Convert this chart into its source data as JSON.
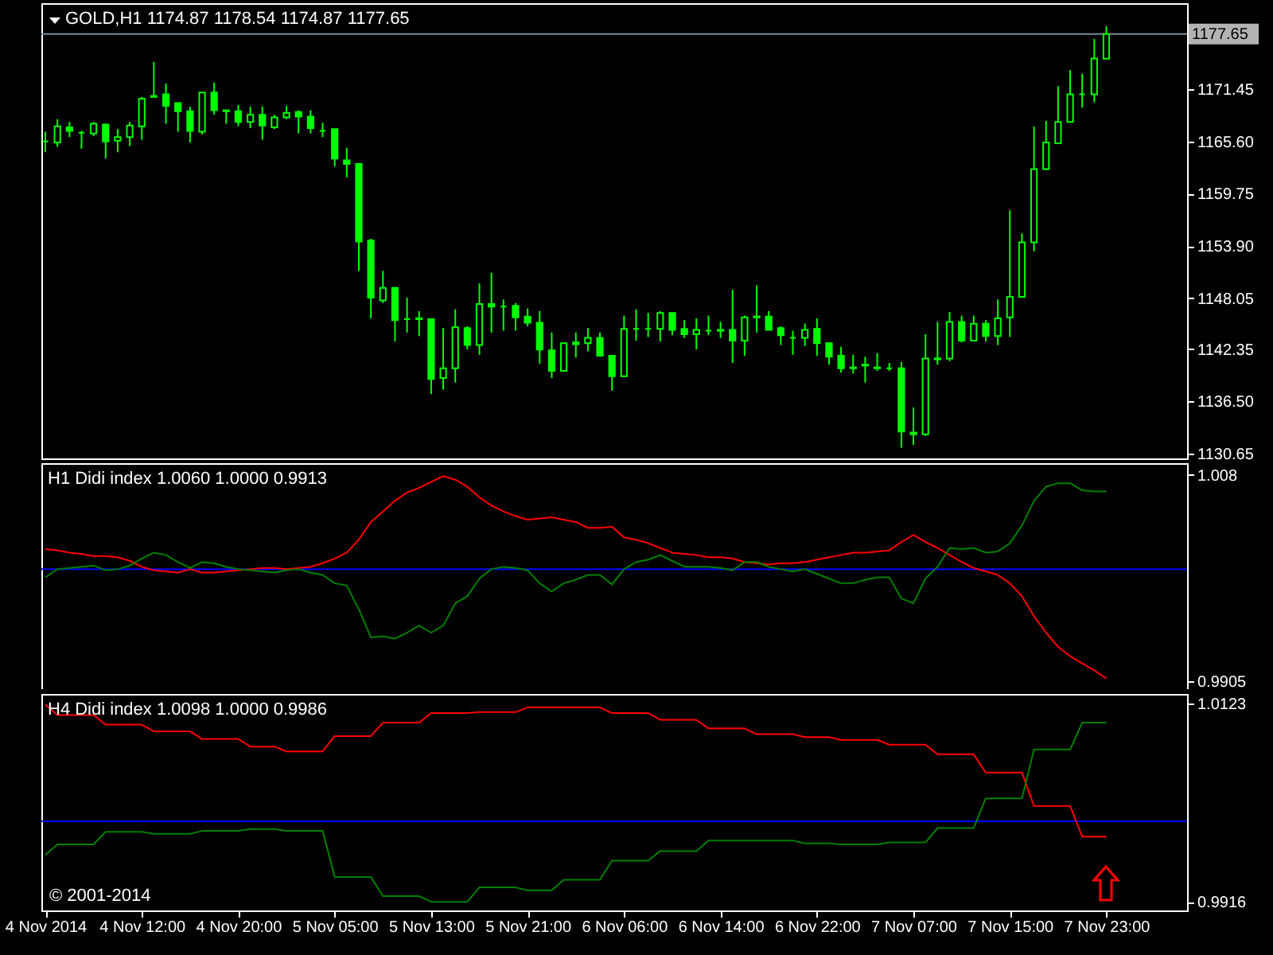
{
  "chart_data": [
    {
      "type": "candlestick",
      "title": "GOLD,H1 1174.87 1178.54 1174.87 1177.65",
      "color": "#00ff00",
      "categories": [
        null,
        null,
        null,
        null,
        null,
        null,
        null,
        null,
        null,
        null,
        null,
        null,
        null,
        null,
        null,
        null,
        null,
        null,
        null,
        null,
        null,
        null,
        null,
        null,
        null,
        null,
        null,
        null,
        null,
        null,
        null,
        null,
        null,
        null,
        null,
        null,
        null,
        null,
        null,
        null,
        null,
        null,
        null,
        null,
        null,
        null,
        null,
        null,
        null,
        null,
        null,
        null,
        null,
        null,
        null,
        null,
        null,
        null,
        null,
        null,
        null,
        null,
        null,
        null,
        null,
        null,
        null,
        null,
        null,
        null,
        null,
        null,
        null,
        null,
        null,
        null,
        null,
        null,
        null,
        null,
        null,
        null,
        null,
        null,
        null,
        null,
        null,
        null,
        null
      ],
      "ohlc": [
        [
          1165.6,
          1166.7,
          1164.4,
          1165.6
        ],
        [
          1165.5,
          1168.1,
          1165.0,
          1167.3
        ],
        [
          1167.2,
          1167.8,
          1166.1,
          1166.8
        ],
        [
          1166.6,
          1166.8,
          1164.8,
          1166.6
        ],
        [
          1166.5,
          1167.8,
          1166.2,
          1167.6
        ],
        [
          1167.5,
          1167.6,
          1163.7,
          1165.6
        ],
        [
          1165.7,
          1167.0,
          1164.4,
          1166.1
        ],
        [
          1166.1,
          1167.8,
          1165.1,
          1167.4
        ],
        [
          1167.3,
          1170.6,
          1165.8,
          1170.4
        ],
        [
          1170.6,
          1174.5,
          1170.6,
          1170.7
        ],
        [
          1170.9,
          1172.1,
          1167.6,
          1169.6
        ],
        [
          1169.9,
          1169.9,
          1166.7,
          1169.0
        ],
        [
          1169.0,
          1169.5,
          1165.5,
          1166.8
        ],
        [
          1166.7,
          1171.1,
          1166.4,
          1171.1
        ],
        [
          1171.1,
          1172.2,
          1168.6,
          1169.1
        ],
        [
          1169.1,
          1169.1,
          1167.6,
          1169.0
        ],
        [
          1169.0,
          1169.7,
          1167.3,
          1167.8
        ],
        [
          1167.8,
          1169.5,
          1167.1,
          1168.6
        ],
        [
          1168.6,
          1169.5,
          1165.8,
          1167.4
        ],
        [
          1167.2,
          1168.6,
          1167.0,
          1168.3
        ],
        [
          1168.3,
          1169.6,
          1168.1,
          1168.8
        ],
        [
          1168.9,
          1169.1,
          1166.5,
          1168.4
        ],
        [
          1168.4,
          1169.1,
          1166.5,
          1167.1
        ],
        [
          1166.8,
          1167.7,
          1166.1,
          1166.8
        ],
        [
          1167.0,
          1167.0,
          1162.8,
          1163.7
        ],
        [
          1163.5,
          1164.9,
          1161.6,
          1163.1
        ],
        [
          1163.1,
          1163.1,
          1151.1,
          1154.4
        ],
        [
          1154.5,
          1154.7,
          1145.8,
          1148.1
        ],
        [
          1147.8,
          1151.1,
          1147.5,
          1149.2
        ],
        [
          1149.2,
          1149.3,
          1143.2,
          1145.6
        ],
        [
          1145.7,
          1148.1,
          1144.2,
          1145.7
        ],
        [
          1145.8,
          1146.6,
          1143.8,
          1145.7
        ],
        [
          1145.7,
          1145.8,
          1137.3,
          1139.0
        ],
        [
          1139.1,
          1144.7,
          1137.8,
          1140.2
        ],
        [
          1140.2,
          1146.8,
          1138.6,
          1144.8
        ],
        [
          1144.7,
          1144.9,
          1142.3,
          1142.8
        ],
        [
          1142.8,
          1149.7,
          1141.7,
          1147.4
        ],
        [
          1147.4,
          1150.9,
          1144.2,
          1147.1
        ],
        [
          1147.1,
          1147.9,
          1144.4,
          1147.1
        ],
        [
          1147.2,
          1147.5,
          1144.4,
          1145.9
        ],
        [
          1146.0,
          1146.9,
          1144.9,
          1145.3
        ],
        [
          1145.3,
          1146.6,
          1140.7,
          1142.3
        ],
        [
          1142.2,
          1144.2,
          1139.1,
          1139.9
        ],
        [
          1139.9,
          1143.1,
          1139.8,
          1143.0
        ],
        [
          1143.1,
          1144.2,
          1141.4,
          1142.9
        ],
        [
          1143.0,
          1144.7,
          1142.1,
          1143.6
        ],
        [
          1143.6,
          1144.2,
          1141.5,
          1141.6
        ],
        [
          1141.6,
          1141.7,
          1137.7,
          1139.3
        ],
        [
          1139.3,
          1146.1,
          1139.3,
          1144.6
        ],
        [
          1144.6,
          1146.8,
          1143.3,
          1144.6
        ],
        [
          1144.6,
          1146.4,
          1143.7,
          1144.6
        ],
        [
          1144.6,
          1146.6,
          1143.2,
          1146.4
        ],
        [
          1146.4,
          1146.4,
          1143.9,
          1144.5
        ],
        [
          1144.6,
          1145.6,
          1143.6,
          1144.0
        ],
        [
          1144.0,
          1145.8,
          1142.3,
          1144.5
        ],
        [
          1144.4,
          1146.1,
          1143.9,
          1144.4
        ],
        [
          1144.4,
          1145.4,
          1143.6,
          1144.5
        ],
        [
          1144.5,
          1149.0,
          1140.8,
          1143.3
        ],
        [
          1143.3,
          1146.1,
          1141.6,
          1145.9
        ],
        [
          1145.9,
          1149.5,
          1144.2,
          1146.0
        ],
        [
          1146.0,
          1146.6,
          1144.5,
          1144.5
        ],
        [
          1144.7,
          1144.9,
          1142.8,
          1143.9
        ],
        [
          1143.6,
          1144.4,
          1141.7,
          1143.6
        ],
        [
          1143.6,
          1145.2,
          1142.7,
          1144.5
        ],
        [
          1144.6,
          1145.8,
          1141.6,
          1143.0
        ],
        [
          1143.0,
          1143.1,
          1140.6,
          1141.5
        ],
        [
          1141.6,
          1142.6,
          1139.7,
          1140.2
        ],
        [
          1140.2,
          1141.7,
          1139.6,
          1140.3
        ],
        [
          1140.6,
          1141.5,
          1138.6,
          1140.5
        ],
        [
          1140.3,
          1141.9,
          1139.9,
          1140.2
        ],
        [
          1140.2,
          1140.8,
          1139.9,
          1140.2
        ],
        [
          1140.2,
          1140.9,
          1131.3,
          1133.1
        ],
        [
          1133.0,
          1135.8,
          1131.6,
          1132.8
        ],
        [
          1132.8,
          1144.0,
          1132.6,
          1141.3
        ],
        [
          1141.2,
          1145.4,
          1140.6,
          1141.3
        ],
        [
          1141.3,
          1146.5,
          1141.0,
          1145.4
        ],
        [
          1145.4,
          1146.1,
          1143.1,
          1143.3
        ],
        [
          1143.3,
          1146.1,
          1143.2,
          1145.2
        ],
        [
          1145.2,
          1145.6,
          1143.2,
          1143.8
        ],
        [
          1143.8,
          1147.9,
          1142.8,
          1145.8
        ],
        [
          1145.9,
          1157.9,
          1143.7,
          1148.2
        ],
        [
          1148.2,
          1155.3,
          1148.1,
          1154.3
        ],
        [
          1154.3,
          1167.3,
          1153.3,
          1162.5
        ],
        [
          1162.5,
          1167.9,
          1162.4,
          1165.5
        ],
        [
          1165.4,
          1171.8,
          1165.4,
          1167.8
        ],
        [
          1167.8,
          1173.6,
          1167.8,
          1170.9
        ],
        [
          1170.9,
          1173.2,
          1169.4,
          1170.9
        ],
        [
          1170.9,
          1177.1,
          1170.0,
          1174.9
        ],
        [
          1174.87,
          1178.54,
          1174.87,
          1177.65
        ]
      ],
      "ylim": [
        1130.1,
        1181.1
      ],
      "yticks": [
        1130.65,
        {
          "value": 1136.5,
          "label": "1136.50"
        },
        1142.35,
        1148.05,
        {
          "value": 1153.9,
          "label": "1153.90"
        },
        1159.75,
        {
          "value": 1165.6,
          "label": "1165.60"
        },
        1171.45
      ],
      "ref_lines": [
        {
          "axis": "y",
          "value": 1177.65,
          "label": "1177.65",
          "color": "#778899"
        }
      ],
      "tick_labels": "y"
    },
    {
      "type": "line",
      "title": "H1 Didi index 1.0060 1.0000 0.9913",
      "categories": [
        null,
        null,
        null,
        null,
        null,
        null,
        null,
        null,
        null,
        null,
        null,
        null,
        null,
        null,
        null,
        null,
        null,
        null,
        null,
        null,
        null,
        null,
        null,
        null,
        null,
        null,
        null,
        null,
        null,
        null,
        null,
        null,
        null,
        null,
        null,
        null,
        null,
        null,
        null,
        null,
        null,
        null,
        null,
        null,
        null,
        null,
        null,
        null,
        null,
        null,
        null,
        null,
        null,
        null,
        null,
        null,
        null,
        null,
        null,
        null,
        null,
        null,
        null,
        null,
        null,
        null,
        null,
        null,
        null,
        null,
        null,
        null,
        null,
        null,
        null,
        null,
        null,
        null,
        null,
        null,
        null,
        null,
        null,
        null,
        null,
        null,
        null,
        null,
        null
      ],
      "series": [
        {
          "color": "#ff0000",
          "values": [
            1.0017,
            1.0016,
            1.0014,
            1.0013,
            1.0011,
            1.0011,
            1.001,
            1.0007,
            1.0002,
            0.9999,
            0.9998,
            0.9997,
            1.0,
            0.9997,
            0.9997,
            0.9998,
            0.9999,
            1.0,
            1.0001,
            1.0001,
            1.0,
            1.0001,
            1.0002,
            1.0005,
            1.0009,
            1.0014,
            1.0025,
            1.004,
            1.0049,
            1.0058,
            1.0065,
            1.0069,
            1.0074,
            1.0079,
            1.0076,
            1.007,
            1.0061,
            1.0054,
            1.0049,
            1.0045,
            1.0042,
            1.0043,
            1.0044,
            1.0042,
            1.004,
            1.0035,
            1.0035,
            1.0036,
            1.0027,
            1.0025,
            1.0022,
            1.0018,
            1.0014,
            1.0013,
            1.0012,
            1.001,
            1.001,
            1.0009,
            1.0006,
            1.0005,
            1.0004,
            1.0005,
            1.0005,
            1.0006,
            1.0008,
            1.001,
            1.0012,
            1.0014,
            1.0014,
            1.0015,
            1.0016,
            1.0023,
            1.0029,
            1.0023,
            1.0018,
            1.0012,
            1.0006,
            1.0001,
            0.9998,
            0.9995,
            0.9988,
            0.9977,
            0.996,
            0.9946,
            0.9934,
            0.9926,
            0.992,
            0.9914,
            0.9907
          ]
        },
        {
          "color": "#008000",
          "values": [
            0.9993,
            1.0,
            1.0001,
            1.0002,
            1.0003,
            0.9999,
            1.0,
            1.0003,
            1.0009,
            1.0014,
            1.0012,
            1.0006,
            1.0001,
            1.0006,
            1.0005,
            1.0002,
            1.0,
            0.9999,
            0.9998,
            0.9997,
            0.9999,
            1.0,
            0.9997,
            0.9995,
            0.9988,
            0.9986,
            0.9966,
            0.9942,
            0.9943,
            0.9941,
            0.9946,
            0.9952,
            0.9946,
            0.9952,
            0.9971,
            0.9977,
            0.9992,
            1.0,
            1.0002,
            1.0001,
            0.9999,
            0.9988,
            0.9981,
            0.9988,
            0.9991,
            0.9995,
            0.9995,
            0.9987,
            1.0,
            1.0006,
            1.0008,
            1.0012,
            1.0007,
            1.0002,
            1.0002,
            1.0002,
            1.0001,
            0.9999,
            1.0006,
            1.0006,
            1.0002,
            1.0,
            0.9998,
            1.0,
            0.9996,
            0.9992,
            0.9988,
            0.9988,
            0.9991,
            0.9993,
            0.9993,
            0.9975,
            0.9971,
            0.9992,
            1.0002,
            1.0018,
            1.0017,
            1.0018,
            1.0014,
            1.0015,
            1.0022,
            1.0037,
            1.0058,
            1.007,
            1.0073,
            1.0073,
            1.0067,
            1.0066,
            1.0066
          ]
        }
      ],
      "ylim": [
        0.9898,
        1.009
      ],
      "yticks": [
        0.9905,
        1.008
      ],
      "ref_lines": [
        {
          "axis": "y",
          "value": 1,
          "color": "#0000ff"
        }
      ],
      "tick_labels": "y"
    },
    {
      "type": "line",
      "title": "H4 Didi index 1.0098 1.0000 0.9986",
      "categories": [
        "4 Nov 2014",
        null,
        null,
        null,
        null,
        null,
        null,
        null,
        "4 Nov 12:00",
        null,
        null,
        null,
        null,
        null,
        null,
        null,
        "4 Nov 20:00",
        null,
        null,
        null,
        null,
        null,
        null,
        null,
        "5 Nov 05:00",
        null,
        null,
        null,
        null,
        null,
        null,
        null,
        "5 Nov 13:00",
        null,
        null,
        null,
        null,
        null,
        null,
        null,
        "5 Nov 21:00",
        null,
        null,
        null,
        null,
        null,
        null,
        null,
        "6 Nov 06:00",
        null,
        null,
        null,
        null,
        null,
        null,
        null,
        "6 Nov 14:00",
        null,
        null,
        null,
        null,
        null,
        null,
        null,
        "6 Nov 22:00",
        null,
        null,
        null,
        null,
        null,
        null,
        null,
        "7 Nov 07:00",
        null,
        null,
        null,
        null,
        null,
        null,
        null,
        "7 Nov 15:00",
        null,
        null,
        null,
        null,
        null,
        null,
        null,
        "7 Nov 23:00"
      ],
      "series": [
        {
          "color": "#ff0000",
          "values": [
            1.0122,
            1.0111,
            1.0111,
            1.0111,
            1.0111,
            1.0101,
            1.0101,
            1.0101,
            1.0101,
            1.0094,
            1.0094,
            1.0094,
            1.0094,
            1.0086,
            1.0086,
            1.0086,
            1.0086,
            1.0078,
            1.0078,
            1.0078,
            1.0073,
            1.0073,
            1.0073,
            1.0073,
            1.0089,
            1.0089,
            1.0089,
            1.0089,
            1.0103,
            1.0103,
            1.0103,
            1.0103,
            1.0113,
            1.0113,
            1.0113,
            1.0113,
            1.0114,
            1.0114,
            1.0114,
            1.0114,
            1.0119,
            1.0119,
            1.0119,
            1.0119,
            1.0119,
            1.0119,
            1.0119,
            1.0113,
            1.0113,
            1.0113,
            1.0113,
            1.0106,
            1.0106,
            1.0106,
            1.0106,
            1.0097,
            1.0097,
            1.0097,
            1.0097,
            1.0091,
            1.0091,
            1.0091,
            1.0091,
            1.0088,
            1.0088,
            1.0088,
            1.0085,
            1.0085,
            1.0085,
            1.0085,
            1.008,
            1.008,
            1.008,
            1.008,
            1.007,
            1.007,
            1.007,
            1.007,
            1.0051,
            1.0051,
            1.0051,
            1.0051,
            1.0016,
            1.0016,
            1.0016,
            1.0016,
            0.9984,
            0.9984,
            0.9984
          ]
        },
        {
          "color": "#008000",
          "values": [
            0.9965,
            0.9976,
            0.9976,
            0.9976,
            0.9976,
            0.9989,
            0.9989,
            0.9989,
            0.9989,
            0.9987,
            0.9987,
            0.9987,
            0.9987,
            0.999,
            0.999,
            0.999,
            0.999,
            0.9992,
            0.9992,
            0.9992,
            0.999,
            0.999,
            0.999,
            0.999,
            0.9942,
            0.9942,
            0.9942,
            0.9942,
            0.9922,
            0.9922,
            0.9922,
            0.9922,
            0.9916,
            0.9916,
            0.9916,
            0.9916,
            0.9931,
            0.9931,
            0.9931,
            0.9931,
            0.9928,
            0.9928,
            0.9928,
            0.9939,
            0.9939,
            0.9939,
            0.9939,
            0.9959,
            0.9959,
            0.9959,
            0.9959,
            0.9969,
            0.9969,
            0.9969,
            0.9969,
            0.998,
            0.998,
            0.998,
            0.998,
            0.998,
            0.998,
            0.998,
            0.998,
            0.9977,
            0.9977,
            0.9977,
            0.9976,
            0.9976,
            0.9976,
            0.9976,
            0.9978,
            0.9978,
            0.9978,
            0.9978,
            0.9993,
            0.9993,
            0.9993,
            0.9993,
            1.0024,
            1.0024,
            1.0024,
            1.0024,
            1.0075,
            1.0075,
            1.0075,
            1.0075,
            1.0103,
            1.0103,
            1.0103
          ]
        }
      ],
      "ylim": [
        0.9907,
        1.0133
      ],
      "yticks": [
        0.9916,
        1.0123
      ],
      "ref_lines": [
        {
          "axis": "y",
          "value": 1,
          "color": "#0000ff"
        }
      ],
      "annotations": [
        "© 2001-2014"
      ]
    }
  ]
}
